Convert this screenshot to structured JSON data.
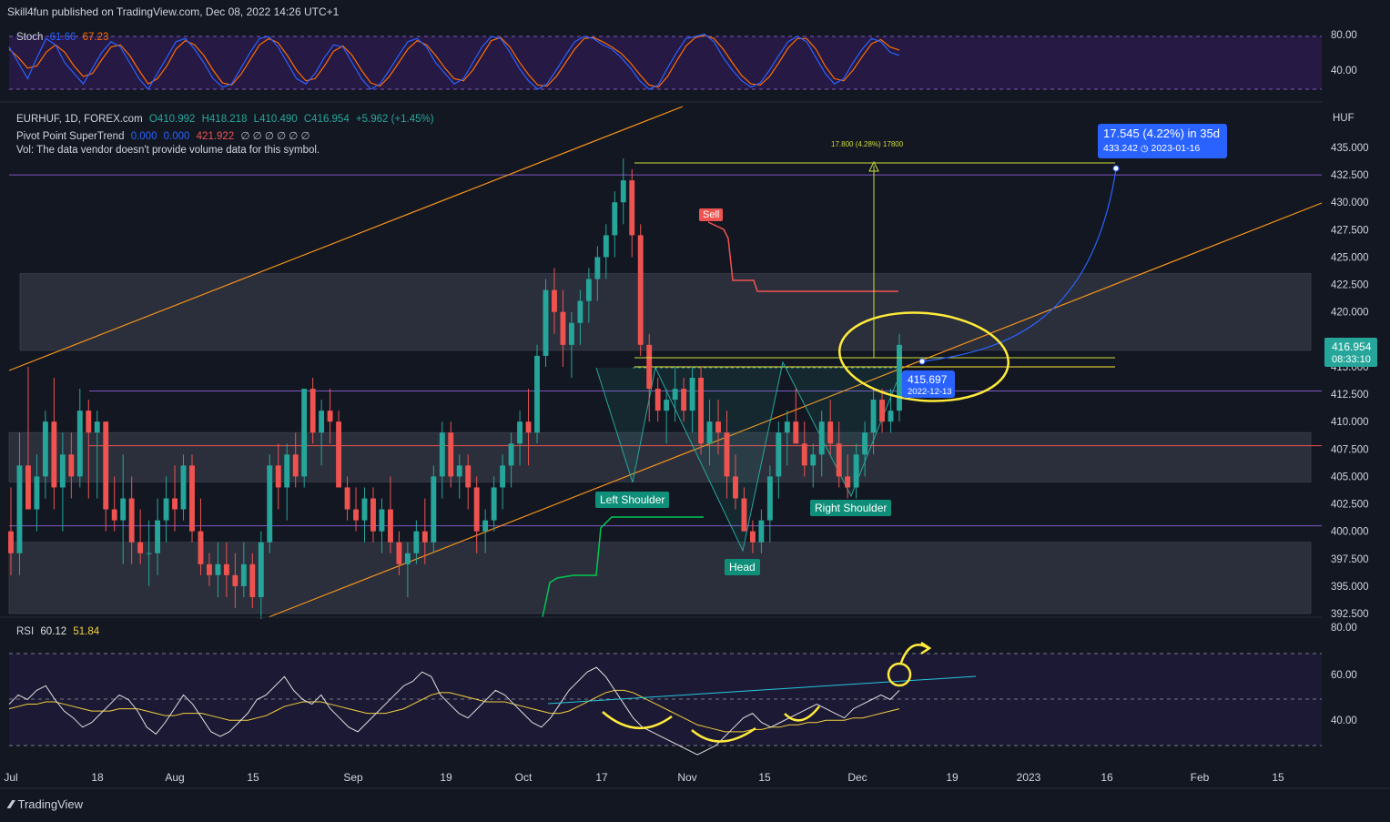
{
  "header": {
    "publisher": "Skill4fun published on TradingView.com, Dec 08, 2022 14:26 UTC+1"
  },
  "stoch": {
    "name": "Stoch",
    "k": "61.66",
    "d": "67.23",
    "axis": [
      "80.00",
      "40.00"
    ]
  },
  "legend": {
    "symbol": "EURHUF, 1D, FOREX.com",
    "o": "O410.992",
    "h": "H418.218",
    "l": "L410.490",
    "c": "C416.954",
    "chg": "+5.962 (+1.45%)",
    "st_name": "Pivot Point SuperTrend",
    "st_v1": "0.000",
    "st_v2": "0.000",
    "st_v3": "421.922",
    "st_dots": "∅ ∅ ∅ ∅ ∅ ∅",
    "vol": "Vol: The data vendor doesn't provide volume data for this symbol."
  },
  "rsi": {
    "name": "RSI",
    "v1": "60.12",
    "v2": "51.84",
    "axis": [
      "80.00",
      "60.00",
      "40.00"
    ]
  },
  "annotations": {
    "sell": "Sell",
    "left_shoulder": "Left Shoulder",
    "head": "Head",
    "right_shoulder": "Right Shoulder",
    "measure": "17.800 (4.28%) 17800",
    "target_line1": "17.545 (4.22%) in 35d",
    "target_line2_price": "433.242",
    "target_line2_date": "2023-01-16",
    "point_price": "415.697",
    "point_date": "2022-12-13",
    "currency": "HUF",
    "last_price": "416.954",
    "countdown": "08:33:10"
  },
  "footer": {
    "brand": "TradingView"
  },
  "colors": {
    "up": "#26a69a",
    "down": "#ef5350",
    "orange": "#f7931a",
    "yellow": "#ffeb3b",
    "blue": "#2962ff",
    "green": "#00c853",
    "stoch_k": "#2962ff",
    "stoch_d": "#ff6d00",
    "rsi_line": "#e0e0e0",
    "rsi_ma": "#f4d03f"
  },
  "chart_data": {
    "type": "candlestick",
    "symbol": "EURHUF",
    "timeframe": "1D",
    "price_axis": [
      "435.000",
      "432.500",
      "430.000",
      "427.500",
      "425.000",
      "422.500",
      "420.000",
      "415.000",
      "412.500",
      "410.000",
      "407.500",
      "405.000",
      "402.500",
      "400.000",
      "397.500",
      "395.000",
      "392.500"
    ],
    "time_axis": [
      "Jul",
      "18",
      "Aug",
      "15",
      "Sep",
      "19",
      "Oct",
      "17",
      "Nov",
      "15",
      "Dec",
      "19",
      "2023",
      "16",
      "Feb",
      "15"
    ],
    "ohlc": [
      [
        400,
        404,
        396,
        398
      ],
      [
        398,
        409,
        396,
        406
      ],
      [
        406,
        415,
        402,
        402
      ],
      [
        402,
        407,
        400,
        405
      ],
      [
        405,
        411,
        403,
        410
      ],
      [
        410,
        414,
        402,
        404
      ],
      [
        404,
        409,
        400,
        407
      ],
      [
        407,
        409,
        403,
        405
      ],
      [
        405,
        413,
        404,
        411
      ],
      [
        411,
        412,
        403,
        409
      ],
      [
        409,
        411,
        403,
        410
      ],
      [
        410,
        410,
        400,
        402
      ],
      [
        402,
        405,
        400,
        401
      ],
      [
        401,
        407,
        397,
        403
      ],
      [
        403,
        405,
        397,
        399
      ],
      [
        399,
        402,
        397,
        398
      ],
      [
        398,
        401,
        395,
        398
      ],
      [
        398,
        403,
        396,
        401
      ],
      [
        401,
        405,
        399,
        403
      ],
      [
        403,
        406,
        400,
        402
      ],
      [
        402,
        407,
        401,
        406
      ],
      [
        406,
        407,
        399,
        400
      ],
      [
        400,
        403,
        396,
        397
      ],
      [
        397,
        398,
        395,
        396
      ],
      [
        396,
        399,
        394,
        397
      ],
      [
        397,
        399,
        394,
        396
      ],
      [
        396,
        398,
        393,
        395
      ],
      [
        395,
        399,
        394,
        397
      ],
      [
        397,
        398,
        393,
        394
      ],
      [
        394,
        400,
        392,
        399
      ],
      [
        399,
        407,
        398,
        406
      ],
      [
        406,
        408,
        402,
        404
      ],
      [
        404,
        408,
        401,
        407
      ],
      [
        407,
        409,
        404,
        405
      ],
      [
        405,
        413,
        404,
        413
      ],
      [
        413,
        414,
        408,
        409
      ],
      [
        409,
        412,
        406,
        411
      ],
      [
        411,
        413,
        408,
        410
      ],
      [
        410,
        411,
        404,
        404
      ],
      [
        404,
        405,
        401,
        402
      ],
      [
        402,
        404,
        400,
        401
      ],
      [
        401,
        404,
        399,
        403
      ],
      [
        403,
        404,
        399,
        400
      ],
      [
        400,
        403,
        398,
        402
      ],
      [
        402,
        405,
        398,
        399
      ],
      [
        399,
        400,
        396,
        397
      ],
      [
        397,
        399,
        394,
        398
      ],
      [
        398,
        401,
        397,
        400
      ],
      [
        400,
        403,
        397,
        399
      ],
      [
        399,
        406,
        398,
        405
      ],
      [
        405,
        410,
        403,
        409
      ],
      [
        409,
        410,
        404,
        405
      ],
      [
        405,
        407,
        403,
        406
      ],
      [
        406,
        407,
        402,
        404
      ],
      [
        404,
        405,
        398,
        400
      ],
      [
        400,
        402,
        398,
        401
      ],
      [
        401,
        405,
        400,
        404
      ],
      [
        404,
        407,
        402,
        406
      ],
      [
        406,
        409,
        404,
        408
      ],
      [
        408,
        411,
        406,
        410
      ],
      [
        410,
        413,
        406,
        409
      ],
      [
        409,
        417,
        408,
        416
      ],
      [
        416,
        423,
        415,
        422
      ],
      [
        422,
        424,
        418,
        420
      ],
      [
        420,
        422,
        415,
        417
      ],
      [
        417,
        420,
        414,
        419
      ],
      [
        419,
        422,
        417,
        421
      ],
      [
        421,
        424,
        419,
        423
      ],
      [
        423,
        426,
        421,
        425
      ],
      [
        425,
        428,
        423,
        427
      ],
      [
        427,
        431,
        425,
        430
      ],
      [
        430,
        434,
        428,
        432
      ],
      [
        432,
        433,
        425,
        427
      ],
      [
        427,
        428,
        416,
        417
      ],
      [
        417,
        418,
        410,
        413
      ],
      [
        413,
        414,
        410,
        411
      ],
      [
        411,
        413,
        408,
        412
      ],
      [
        412,
        415,
        410,
        413
      ],
      [
        413,
        414,
        410,
        411
      ],
      [
        411,
        415,
        409,
        414
      ],
      [
        414,
        415,
        407,
        408
      ],
      [
        408,
        412,
        406,
        410
      ],
      [
        410,
        412,
        407,
        409
      ],
      [
        409,
        411,
        403,
        405
      ],
      [
        405,
        407,
        402,
        403
      ],
      [
        403,
        404,
        400,
        400
      ],
      [
        400,
        401,
        398,
        399
      ],
      [
        399,
        402,
        398,
        401
      ],
      [
        401,
        406,
        399,
        405
      ],
      [
        405,
        410,
        403,
        409
      ],
      [
        409,
        411,
        406,
        410
      ],
      [
        410,
        413,
        408,
        408
      ],
      [
        408,
        410,
        405,
        406
      ],
      [
        406,
        408,
        404,
        407
      ],
      [
        407,
        411,
        405,
        410
      ],
      [
        410,
        412,
        407,
        408
      ],
      [
        408,
        410,
        404,
        405
      ],
      [
        405,
        407,
        403,
        404
      ],
      [
        404,
        408,
        403,
        407
      ],
      [
        407,
        410,
        405,
        409
      ],
      [
        409,
        413,
        407,
        412
      ],
      [
        412,
        413,
        409,
        410
      ],
      [
        410,
        413,
        409,
        411
      ],
      [
        411,
        418,
        410,
        417
      ]
    ],
    "levels": {
      "upper_zone": [
        416.5,
        423.5
      ],
      "middle_zone": [
        404.5,
        409.0
      ],
      "lower_zone": [
        392.5,
        399.0
      ],
      "purple_line_top": 432.5,
      "purple_line_mid": 412.8,
      "red_line": 407.8,
      "purple_line_low": 400.5,
      "neckline": 415.0,
      "target": 433.242,
      "sell_stop": 422.0
    },
    "stoch_k": [
      70,
      55,
      40,
      60,
      78,
      72,
      55,
      45,
      35,
      50,
      65,
      75,
      70,
      55,
      40,
      30,
      45,
      60,
      75,
      78,
      68,
      55,
      40,
      32,
      35,
      50,
      65,
      78,
      80,
      70,
      55,
      40,
      35,
      45,
      60,
      72,
      70,
      55,
      40,
      30,
      35,
      48,
      62,
      75,
      78,
      70,
      55,
      45,
      35,
      40,
      55,
      70,
      80,
      78,
      65,
      50,
      38,
      30,
      35,
      48,
      62,
      75,
      80,
      78,
      72,
      68,
      60,
      50,
      38,
      30,
      34,
      50,
      65,
      78,
      80,
      82,
      75,
      60,
      48,
      38,
      32,
      36,
      48,
      62,
      75,
      80,
      75,
      60,
      45,
      35,
      40,
      55,
      68,
      78,
      75,
      65,
      62
    ],
    "stoch_d": [
      68,
      60,
      50,
      52,
      65,
      72,
      65,
      52,
      42,
      45,
      58,
      70,
      72,
      62,
      48,
      35,
      40,
      52,
      68,
      76,
      72,
      62,
      48,
      36,
      34,
      44,
      58,
      72,
      78,
      74,
      62,
      48,
      38,
      40,
      52,
      66,
      71,
      62,
      48,
      36,
      33,
      42,
      55,
      68,
      76,
      72,
      62,
      50,
      40,
      38,
      48,
      62,
      76,
      79,
      70,
      56,
      44,
      34,
      33,
      42,
      55,
      68,
      78,
      79,
      75,
      70,
      64,
      55,
      44,
      34,
      32,
      42,
      57,
      71,
      79,
      81,
      78,
      68,
      55,
      43,
      35,
      34,
      42,
      55,
      69,
      78,
      78,
      68,
      52,
      40,
      38,
      48,
      61,
      73,
      77,
      70,
      67
    ],
    "rsi": [
      58,
      62,
      60,
      64,
      66,
      60,
      55,
      52,
      48,
      50,
      54,
      58,
      62,
      60,
      55,
      48,
      45,
      50,
      56,
      62,
      58,
      52,
      46,
      44,
      46,
      50,
      54,
      60,
      62,
      66,
      70,
      64,
      60,
      58,
      62,
      56,
      52,
      48,
      46,
      50,
      54,
      58,
      62,
      66,
      68,
      72,
      70,
      62,
      58,
      54,
      52,
      56,
      60,
      64,
      62,
      58,
      54,
      50,
      48,
      52,
      58,
      64,
      68,
      72,
      74,
      70,
      64,
      58,
      52,
      48,
      46,
      44,
      42,
      40,
      38,
      36,
      38,
      40,
      44,
      48,
      52,
      54,
      50,
      48,
      50,
      52,
      54,
      56,
      58,
      56,
      54,
      52,
      56,
      58,
      60,
      62,
      60,
      64
    ],
    "rsi_ma": [
      56,
      57,
      58,
      58,
      59,
      59,
      58,
      57,
      56,
      55,
      55,
      55,
      56,
      56,
      56,
      55,
      54,
      53,
      53,
      54,
      54,
      54,
      53,
      52,
      51,
      51,
      51,
      52,
      53,
      55,
      57,
      58,
      59,
      59,
      59,
      58,
      57,
      56,
      55,
      54,
      54,
      54,
      55,
      56,
      58,
      60,
      62,
      63,
      63,
      62,
      61,
      60,
      59,
      59,
      59,
      58,
      57,
      56,
      55,
      54,
      54,
      55,
      57,
      59,
      61,
      63,
      64,
      64,
      63,
      61,
      59,
      57,
      55,
      53,
      51,
      49,
      48,
      47,
      46,
      46,
      46,
      47,
      47,
      48,
      48,
      49,
      49,
      50,
      50,
      51,
      51,
      51,
      52,
      52,
      53,
      54,
      55,
      56
    ]
  }
}
